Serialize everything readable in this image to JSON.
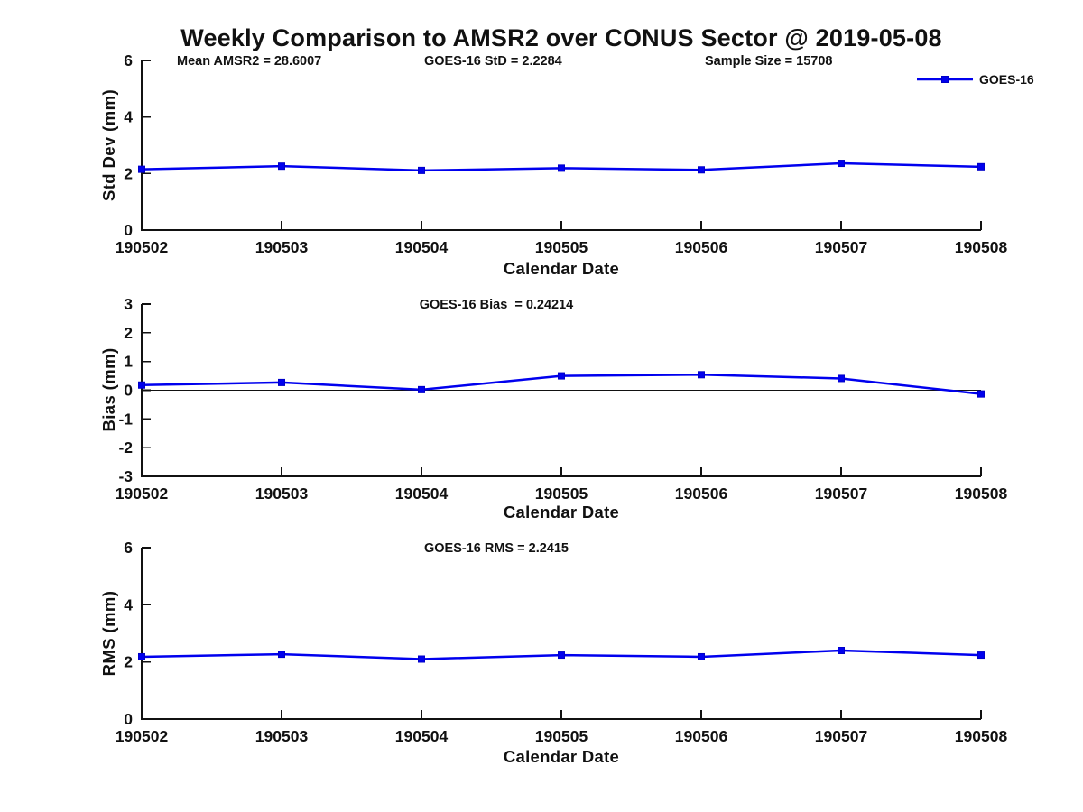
{
  "title": "Weekly Comparison to AMSR2 over CONUS Sector @ 2019-05-08",
  "legend": {
    "label": "GOES-16"
  },
  "line_color": "#0000EE",
  "marker_edge_color": "#0000C8",
  "text_color": "#111111",
  "chart_data": [
    {
      "type": "line",
      "categories": [
        "190502",
        "190503",
        "190504",
        "190505",
        "190506",
        "190507",
        "190508"
      ],
      "series": [
        {
          "name": "GOES-16",
          "values": [
            2.15,
            2.26,
            2.11,
            2.19,
            2.13,
            2.36,
            2.24
          ]
        }
      ],
      "annotations": [
        "Mean AMSR2 = 28.6007",
        "GOES-16 StD = 2.2284",
        "Sample Size = 15708"
      ],
      "xlabel": "Calendar Date",
      "ylabel": "Std Dev (mm)",
      "ylim": [
        0,
        6
      ],
      "yticks": [
        0,
        2,
        4,
        6
      ],
      "grid": false,
      "legend_position": "top-right"
    },
    {
      "type": "line",
      "categories": [
        "190502",
        "190503",
        "190504",
        "190505",
        "190506",
        "190507",
        "190508"
      ],
      "series": [
        {
          "name": "GOES-16",
          "values": [
            0.18,
            0.27,
            0.02,
            0.5,
            0.54,
            0.41,
            -0.13
          ]
        }
      ],
      "annotations": [
        "GOES-16 Bias  = 0.24214"
      ],
      "xlabel": "Calendar Date",
      "ylabel": "Bias (mm)",
      "ylim": [
        -3,
        3
      ],
      "yticks": [
        -3,
        -2,
        -1,
        0,
        1,
        2,
        3
      ],
      "zero_line": true,
      "grid": false
    },
    {
      "type": "line",
      "categories": [
        "190502",
        "190503",
        "190504",
        "190505",
        "190506",
        "190507",
        "190508"
      ],
      "series": [
        {
          "name": "GOES-16",
          "values": [
            2.18,
            2.27,
            2.1,
            2.24,
            2.18,
            2.4,
            2.24
          ]
        }
      ],
      "annotations": [
        "GOES-16 RMS = 2.2415"
      ],
      "xlabel": "Calendar Date",
      "ylabel": "RMS (mm)",
      "ylim": [
        0,
        6
      ],
      "yticks": [
        0,
        2,
        4,
        6
      ],
      "grid": false
    }
  ]
}
